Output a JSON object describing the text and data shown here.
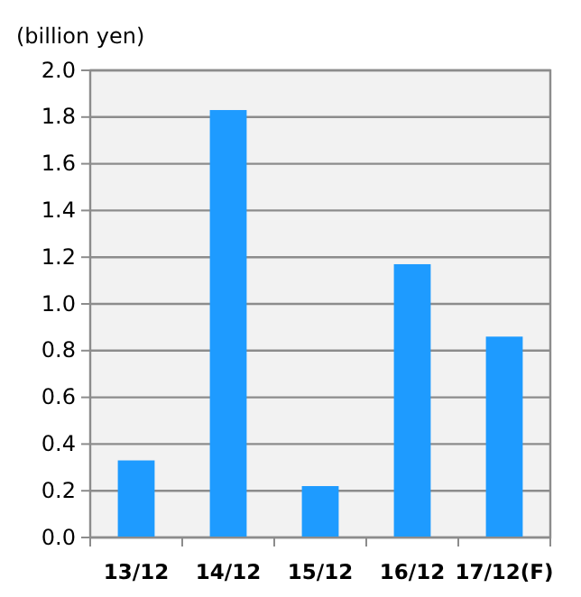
{
  "chart_data": {
    "type": "bar",
    "ylabel": "(billion yen)",
    "categories": [
      "13/12",
      "14/12",
      "15/12",
      "16/12",
      "17/12(F)"
    ],
    "values": [
      0.33,
      1.83,
      0.22,
      1.17,
      0.86
    ],
    "color": "#1e9bff",
    "ylim": [
      0,
      2.0
    ],
    "yticks": [
      {
        "value": 0,
        "label": "0.0"
      },
      {
        "value": 0.2,
        "label": "0.2"
      },
      {
        "value": 0.4,
        "label": "0.4"
      },
      {
        "value": 0.6,
        "label": "0.6"
      },
      {
        "value": 0.8,
        "label": "0.8"
      },
      {
        "value": 1.0,
        "label": "1.0"
      },
      {
        "value": 1.2,
        "label": "1.2"
      },
      {
        "value": 1.4,
        "label": "1.4"
      },
      {
        "value": 1.6,
        "label": "1.6"
      },
      {
        "value": 1.8,
        "label": "1.8"
      },
      {
        "value": 2.0,
        "label": "2.0"
      }
    ],
    "grid": "y"
  }
}
